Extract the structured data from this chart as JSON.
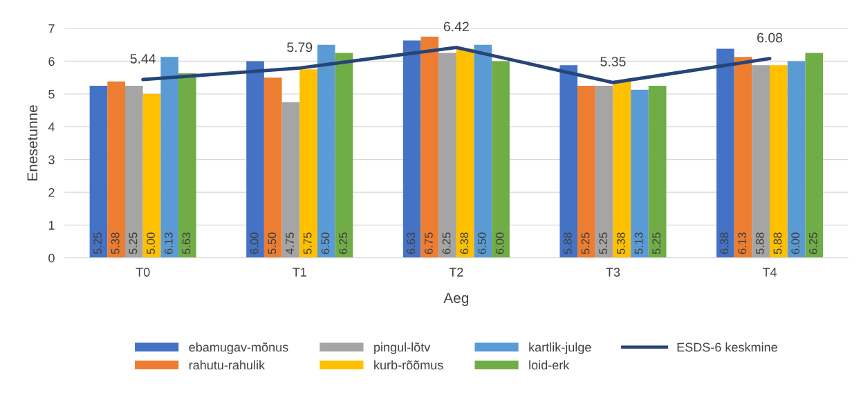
{
  "chart_data": {
    "type": "bar",
    "xlabel": "Aeg",
    "ylabel": "Enesetunne",
    "categories": [
      "T0",
      "T1",
      "T2",
      "T3",
      "T4"
    ],
    "series": [
      {
        "name": "ebamugav-mõnus",
        "color": "#4472c4",
        "values": [
          5.25,
          6.0,
          6.63,
          5.88,
          6.38
        ],
        "value_labels": [
          "5.25",
          "6.00",
          "6.63",
          "5.88",
          "6.38"
        ]
      },
      {
        "name": "rahutu-rahulik",
        "color": "#ed7d31",
        "values": [
          5.38,
          5.5,
          6.75,
          5.25,
          6.13
        ],
        "value_labels": [
          "5.38",
          "5.50",
          "6.75",
          "5.25",
          "6.13"
        ]
      },
      {
        "name": "pingul-lõtv",
        "color": "#a5a5a5",
        "values": [
          5.25,
          4.75,
          6.25,
          5.25,
          5.88
        ],
        "value_labels": [
          "5.25",
          "4.75",
          "6.25",
          "5.25",
          "5.88"
        ]
      },
      {
        "name": "kurb-rõõmus",
        "color": "#ffc000",
        "values": [
          5.0,
          5.75,
          6.38,
          5.38,
          5.88
        ],
        "value_labels": [
          "5.00",
          "5.75",
          "6.38",
          "5.38",
          "5.88"
        ]
      },
      {
        "name": "kartlik-julge",
        "color": "#5b9bd5",
        "values": [
          6.13,
          6.5,
          6.5,
          5.13,
          6.0
        ],
        "value_labels": [
          "6.13",
          "6.50",
          "6.50",
          "5.13",
          "6.00"
        ]
      },
      {
        "name": "loid-erk",
        "color": "#70ad47",
        "values": [
          5.63,
          6.25,
          6.0,
          5.25,
          6.25
        ],
        "value_labels": [
          "5.63",
          "6.25",
          "6.00",
          "5.25",
          "6.25"
        ]
      },
      {
        "name": "ESDS-6 keskmine",
        "type": "line",
        "color": "#264478",
        "values": [
          5.44,
          5.79,
          6.42,
          5.35,
          6.08
        ],
        "value_labels": [
          "5.44",
          "5.79",
          "6.42",
          "5.35",
          "6.08"
        ]
      }
    ],
    "ylim": [
      0,
      7
    ],
    "yticks": [
      0,
      1,
      2,
      3,
      4,
      5,
      6,
      7
    ],
    "grid": "y",
    "legend": "bottom"
  }
}
